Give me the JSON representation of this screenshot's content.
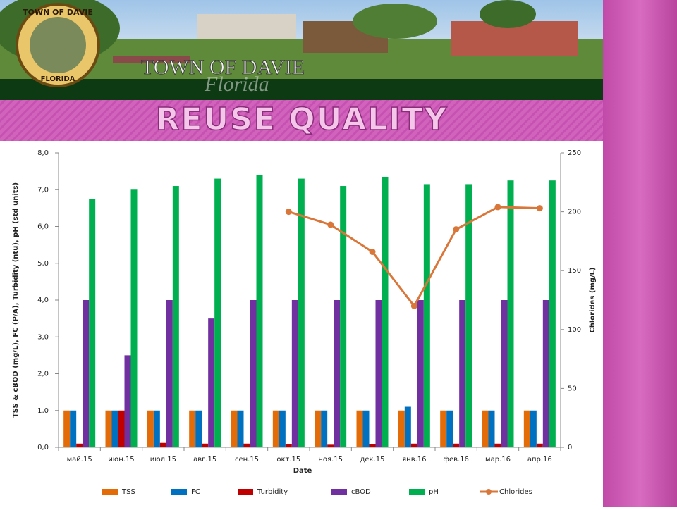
{
  "slide": {
    "title": "REUSE QUALITY",
    "banner_title": "TOWN OF DAVIE",
    "banner_script": "Florida",
    "seal_top": "TOWN OF DAVIE",
    "seal_bottom": "FLORIDA"
  },
  "chart_data": {
    "type": "bar",
    "x_label": "Date",
    "y_label": "TSS & cBOD (mg/L), FC (P/A), Turbidity (ntu), pH (std units)",
    "y2_label": "Chlorides (mg/L)",
    "categories": [
      "май.15",
      "июн.15",
      "июл.15",
      "авг.15",
      "сен.15",
      "окт.15",
      "ноя.15",
      "дек.15",
      "янв.16",
      "фев.16",
      "мар.16",
      "апр.16"
    ],
    "series": [
      {
        "name": "TSS",
        "color": "#e36c09",
        "type": "bar",
        "values": [
          1,
          1,
          1,
          1,
          1,
          1,
          1,
          1,
          1,
          1,
          1,
          1
        ]
      },
      {
        "name": "FC",
        "color": "#0070c0",
        "type": "bar",
        "values": [
          1,
          1,
          1,
          1,
          1,
          1,
          1,
          1,
          1.1,
          1,
          1,
          1
        ]
      },
      {
        "name": "Turbidity",
        "color": "#c00000",
        "type": "bar",
        "values": [
          0.1,
          1,
          0.12,
          0.1,
          0.1,
          0.09,
          0.07,
          0.08,
          0.1,
          0.1,
          0.1,
          0.1
        ]
      },
      {
        "name": "cBOD",
        "color": "#7030a0",
        "type": "bar",
        "values": [
          4,
          2.5,
          4,
          3.5,
          4,
          4,
          4,
          4,
          4,
          4,
          4,
          4
        ]
      },
      {
        "name": "pH",
        "color": "#00b050",
        "type": "bar",
        "values": [
          6.75,
          7.0,
          7.1,
          7.3,
          7.4,
          7.3,
          7.1,
          7.35,
          7.15,
          7.15,
          7.25,
          7.25
        ]
      },
      {
        "name": "Chlorides",
        "color": "#d9773a",
        "type": "line",
        "axis": "y2",
        "values": [
          null,
          null,
          null,
          null,
          null,
          200,
          189,
          166,
          120,
          185,
          204,
          203
        ]
      }
    ],
    "ylim": [
      0,
      8
    ],
    "yticks": [
      {
        "value": 0,
        "label": "0,0"
      },
      {
        "value": 1,
        "label": "1,0"
      },
      {
        "value": 2,
        "label": "2,0"
      },
      {
        "value": 3,
        "label": "3,0"
      },
      {
        "value": 4,
        "label": "4,0"
      },
      {
        "value": 5,
        "label": "5,0"
      },
      {
        "value": 6,
        "label": "6,0"
      },
      {
        "value": 7,
        "label": "7,0"
      },
      {
        "value": 8,
        "label": "8,0"
      }
    ],
    "y2lim": [
      0,
      250
    ],
    "y2ticks": [
      0,
      50,
      100,
      150,
      200,
      250
    ],
    "grid": false,
    "legend": "bottom"
  }
}
